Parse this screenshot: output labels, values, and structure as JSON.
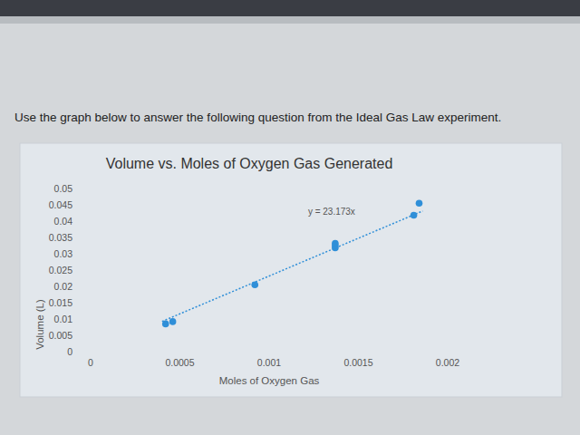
{
  "caption": "Use the graph below to answer the following question from the Ideal Gas Law experiment.",
  "chart_data": {
    "type": "scatter",
    "title": "Volume vs. Moles of Oxygen Gas Generated",
    "x_label": "Moles of Oxygen Gas",
    "y_label": "Volume (L)",
    "x": [
      0.00042,
      0.00046,
      0.00092,
      0.00137,
      0.00137,
      0.00137,
      0.00181,
      0.00184
    ],
    "values": [
      0.0085,
      0.0092,
      0.0205,
      0.0318,
      0.0325,
      0.0332,
      0.0418,
      0.0455
    ],
    "color": "#2f8fd8",
    "marker": "circle",
    "xlim": [
      0,
      0.002
    ],
    "xticks": [
      0,
      0.0005,
      0.001,
      0.0015,
      0.002
    ],
    "ylim": [
      0,
      0.05
    ],
    "yticks": [
      0,
      0.005,
      0.01,
      0.015,
      0.02,
      0.025,
      0.03,
      0.035,
      0.04,
      0.045,
      0.05
    ],
    "grid": false,
    "trendline": {
      "label": "y = 23.173x",
      "slope": 23.173,
      "x": [
        0.0004,
        0.00186
      ],
      "line_style": "dotted"
    }
  }
}
